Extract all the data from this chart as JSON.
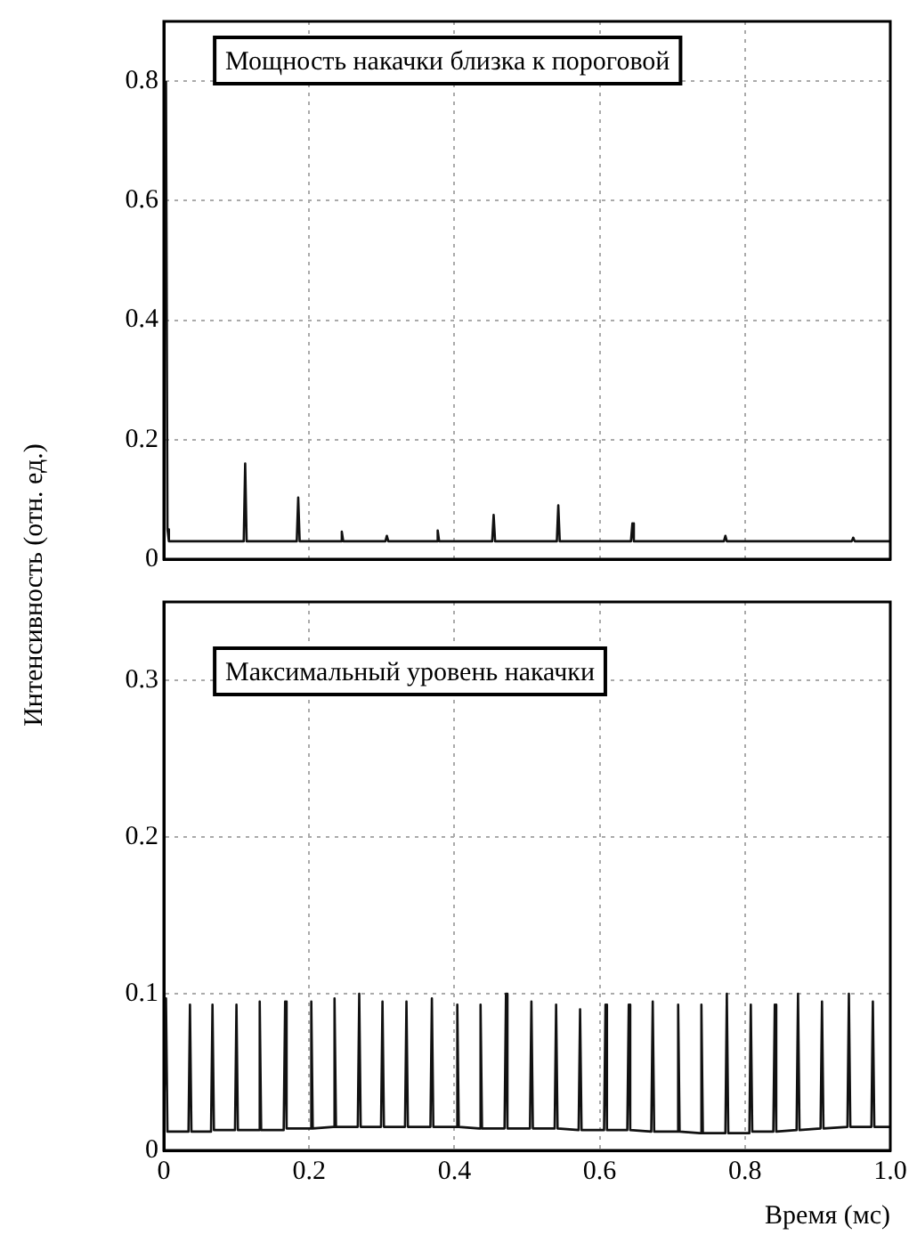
{
  "chart_data": [
    {
      "type": "line",
      "ylabel": "Интенсивность (отн. ед.)",
      "annotations": [
        "Мощность накачки близка к пороговой"
      ],
      "xlim": [
        0,
        1
      ],
      "ylim": [
        0,
        0.9
      ],
      "xticks": [
        0,
        0.2,
        0.4,
        0.6,
        0.8,
        1
      ],
      "yticks": [
        0,
        0.2,
        0.4,
        0.6,
        0.8
      ],
      "grid": true,
      "tick_labels": "y",
      "marker": "none",
      "series": [
        {
          "color": "#111111",
          "x": [
            0.003,
            0.005,
            0.007,
            0.11,
            0.112,
            0.114,
            0.183,
            0.185,
            0.187,
            0.243,
            0.245,
            0.247,
            0.305,
            0.307,
            0.309,
            0.375,
            0.377,
            0.379,
            0.452,
            0.454,
            0.456,
            0.541,
            0.543,
            0.545,
            0.643,
            0.645,
            0.647,
            0.771,
            0.773,
            0.775,
            0.947,
            0.949,
            0.951,
            1
          ],
          "values": [
            0.8,
            0.05,
            0.03,
            0.03,
            0.16,
            0.03,
            0.03,
            0.103,
            0.03,
            0.03,
            0.046,
            0.03,
            0.03,
            0.039,
            0.03,
            0.03,
            0.048,
            0.03,
            0.03,
            0.074,
            0.03,
            0.03,
            0.09,
            0.03,
            0.03,
            0.06,
            0.03,
            0.03,
            0.039,
            0.03,
            0.03,
            0.036,
            0.03,
            0.03
          ]
        }
      ]
    },
    {
      "type": "line",
      "xlabel": "Время (мс)",
      "annotations": [
        "Максимальный уровень накачки"
      ],
      "xlim": [
        0,
        1
      ],
      "ylim": [
        0,
        0.35
      ],
      "xticks": [
        0,
        0.2,
        0.4,
        0.6,
        0.8,
        {
          "value": 1,
          "label": "1.0"
        }
      ],
      "yticks": [
        0,
        0.1,
        0.2,
        0.3
      ],
      "grid": true,
      "marker": "none",
      "series": [
        {
          "color": "#111111",
          "x": [
            0,
            0.003,
            0.005,
            0.034,
            0.036,
            0.038,
            0.065,
            0.067,
            0.069,
            0.098,
            0.1,
            0.102,
            0.13,
            0.132,
            0.134,
            0.165,
            0.167,
            0.169,
            0.201,
            0.203,
            0.205,
            0.233,
            0.235,
            0.237,
            0.267,
            0.269,
            0.271,
            0.299,
            0.301,
            0.303,
            0.332,
            0.334,
            0.336,
            0.367,
            0.369,
            0.371,
            0.402,
            0.404,
            0.406,
            0.434,
            0.436,
            0.438,
            0.469,
            0.471,
            0.473,
            0.504,
            0.506,
            0.508,
            0.538,
            0.54,
            0.542,
            0.571,
            0.573,
            0.575,
            0.606,
            0.608,
            0.61,
            0.638,
            0.64,
            0.642,
            0.671,
            0.673,
            0.675,
            0.706,
            0.708,
            0.71,
            0.738,
            0.74,
            0.742,
            0.773,
            0.775,
            0.777,
            0.806,
            0.808,
            0.81,
            0.839,
            0.841,
            0.843,
            0.871,
            0.873,
            0.875,
            0.904,
            0.906,
            0.908,
            0.941,
            0.943,
            0.945,
            0.974,
            0.976,
            0.978,
            1
          ],
          "values": [
            0.012,
            0.097,
            0.012,
            0.012,
            0.093,
            0.012,
            0.012,
            0.093,
            0.013,
            0.013,
            0.093,
            0.013,
            0.013,
            0.095,
            0.013,
            0.013,
            0.095,
            0.014,
            0.014,
            0.095,
            0.014,
            0.015,
            0.097,
            0.015,
            0.015,
            0.1,
            0.015,
            0.015,
            0.095,
            0.015,
            0.015,
            0.095,
            0.015,
            0.015,
            0.097,
            0.015,
            0.015,
            0.093,
            0.015,
            0.014,
            0.093,
            0.014,
            0.014,
            0.1,
            0.014,
            0.014,
            0.095,
            0.014,
            0.014,
            0.093,
            0.014,
            0.013,
            0.09,
            0.013,
            0.013,
            0.093,
            0.013,
            0.013,
            0.093,
            0.013,
            0.012,
            0.095,
            0.012,
            0.012,
            0.093,
            0.012,
            0.011,
            0.093,
            0.011,
            0.011,
            0.1,
            0.011,
            0.011,
            0.093,
            0.012,
            0.012,
            0.093,
            0.012,
            0.013,
            0.1,
            0.013,
            0.014,
            0.095,
            0.014,
            0.015,
            0.1,
            0.015,
            0.015,
            0.095,
            0.015,
            0.015
          ]
        }
      ]
    }
  ]
}
